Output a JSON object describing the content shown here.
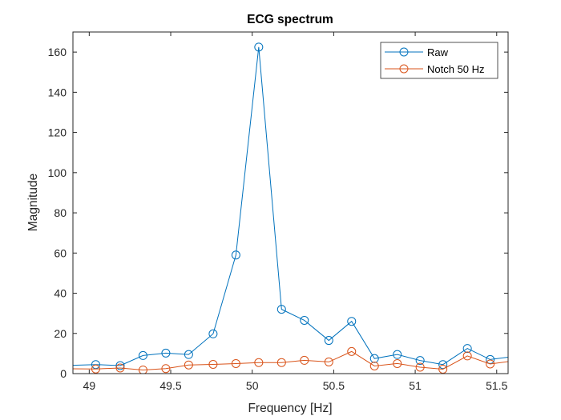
{
  "chart_data": {
    "type": "line",
    "title": "ECG spectrum",
    "xlabel": "Frequency [Hz]",
    "ylabel": "Magnitude",
    "xlim": [
      48.9,
      51.57
    ],
    "ylim": [
      0,
      170
    ],
    "xticks": [
      49,
      49.5,
      50,
      50.5,
      51,
      51.5
    ],
    "xtick_labels": [
      "49",
      "49.5",
      "50",
      "50.5",
      "51",
      "51.5"
    ],
    "yticks": [
      0,
      20,
      40,
      60,
      80,
      100,
      120,
      140,
      160
    ],
    "ytick_labels": [
      "0",
      "20",
      "40",
      "60",
      "80",
      "100",
      "120",
      "140",
      "160"
    ],
    "grid": false,
    "legend_position": "top-right",
    "marker": "circle",
    "series": [
      {
        "name": "Raw",
        "color": "#0072BD",
        "x": [
          48.76,
          49.04,
          49.19,
          49.33,
          49.47,
          49.61,
          49.76,
          49.9,
          50.04,
          50.18,
          50.32,
          50.47,
          50.61,
          50.75,
          50.89,
          51.03,
          51.17,
          51.32,
          51.46,
          51.6
        ],
        "y": [
          3.8,
          4.5,
          4.0,
          9.0,
          10.2,
          9.5,
          19.8,
          59.0,
          162.5,
          32.0,
          26.5,
          16.5,
          26.0,
          7.5,
          9.5,
          6.5,
          4.5,
          12.5,
          7.0,
          8.5
        ]
      },
      {
        "name": "Notch 50 Hz",
        "color": "#D95319",
        "x": [
          48.76,
          49.04,
          49.19,
          49.33,
          49.47,
          49.61,
          49.76,
          49.9,
          50.04,
          50.18,
          50.32,
          50.47,
          50.61,
          50.75,
          50.89,
          51.03,
          51.17,
          51.32,
          51.46,
          51.6
        ],
        "y": [
          2.5,
          2.3,
          2.8,
          1.8,
          2.5,
          4.3,
          4.6,
          5.0,
          5.5,
          5.5,
          6.6,
          5.8,
          11.0,
          3.8,
          5.0,
          3.2,
          2.2,
          8.8,
          4.8,
          6.3
        ]
      }
    ]
  }
}
